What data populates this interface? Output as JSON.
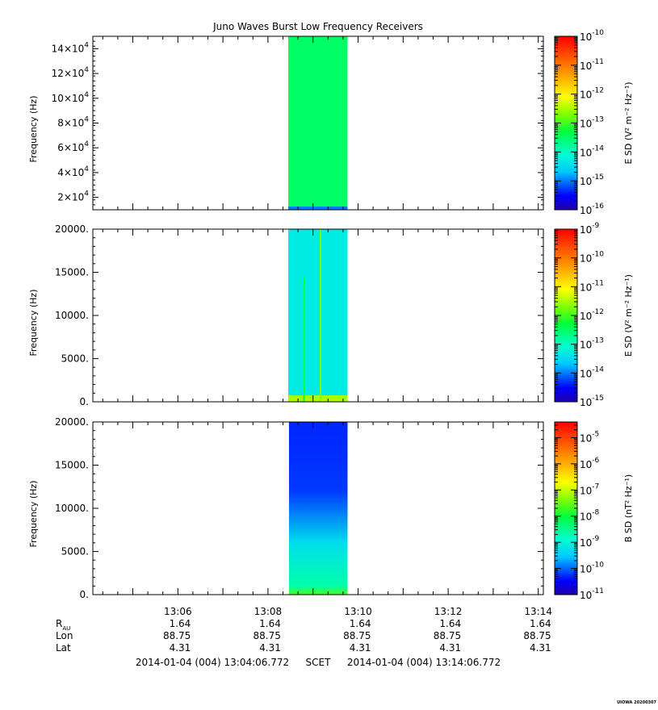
{
  "title": "Juno Waves Burst Low Frequency Receivers",
  "footer": {
    "start": "2014-01-04 (004) 13:04:06.772",
    "frame": "SCET",
    "end": "2014-01-04 (004) 13:14:06.772",
    "stamp": "UIOWA 20200307"
  },
  "ephemeris": {
    "rows": [
      {
        "label": "R",
        "sub": "AU",
        "values": [
          "1.64",
          "1.64",
          "1.64",
          "1.64",
          "1.64"
        ]
      },
      {
        "label": "Lon",
        "sub": "",
        "values": [
          "88.75",
          "88.75",
          "88.75",
          "88.75",
          "88.75"
        ]
      },
      {
        "label": "Lat",
        "sub": "",
        "values": [
          "4.31",
          "4.31",
          "4.31",
          "4.31",
          "4.31"
        ]
      }
    ]
  },
  "chart_data": [
    {
      "type": "heatmap",
      "panel": "top",
      "ylabel": "Frequency (Hz)",
      "colorbar_label": "E SD (V² m⁻² Hz⁻¹)",
      "colorbar_range_exp": [
        -16,
        -10
      ],
      "colorbar_ticks": [
        {
          "exp": "-10",
          "v": -10
        },
        {
          "exp": "-11",
          "v": -11
        },
        {
          "exp": "-12",
          "v": -12
        },
        {
          "exp": "-13",
          "v": -13
        },
        {
          "exp": "-14",
          "v": -14
        },
        {
          "exp": "-15",
          "v": -15
        },
        {
          "exp": "-16",
          "v": -16
        }
      ],
      "ylim": [
        10000,
        150000
      ],
      "yticks": [
        {
          "mant": "14×10",
          "exp": "4",
          "v": 140000
        },
        {
          "mant": "12×10",
          "exp": "4",
          "v": 120000
        },
        {
          "mant": "10×10",
          "exp": "4",
          "v": 100000
        },
        {
          "mant": "8×10",
          "exp": "4",
          "v": 80000
        },
        {
          "mant": "6×10",
          "exp": "4",
          "v": 60000
        },
        {
          "mant": "4×10",
          "exp": "4",
          "v": 40000
        },
        {
          "mant": "2×10",
          "exp": "4",
          "v": 20000
        }
      ],
      "data_window": [
        "13:08:27",
        "13:09:46"
      ],
      "dominant_level_exp": -13.5,
      "low_band_level_exp": -15
    },
    {
      "type": "heatmap",
      "panel": "middle",
      "ylabel": "Frequency (Hz)",
      "colorbar_label": "E SD (V² m⁻² Hz⁻¹)",
      "colorbar_range_exp": [
        -15,
        -9
      ],
      "colorbar_ticks": [
        {
          "exp": "-9",
          "v": -9
        },
        {
          "exp": "-10",
          "v": -10
        },
        {
          "exp": "-11",
          "v": -11
        },
        {
          "exp": "-12",
          "v": -12
        },
        {
          "exp": "-13",
          "v": -13
        },
        {
          "exp": "-14",
          "v": -14
        },
        {
          "exp": "-15",
          "v": -15
        }
      ],
      "ylim": [
        0,
        20000
      ],
      "yticks": [
        {
          "label": "20000.",
          "v": 20000
        },
        {
          "label": "15000.",
          "v": 15000
        },
        {
          "label": "10000.",
          "v": 10000
        },
        {
          "label": "5000.",
          "v": 5000
        },
        {
          "label": "0.",
          "v": 0
        }
      ],
      "data_window": [
        "13:08:27",
        "13:09:46"
      ],
      "dominant_level_exp": -13.3,
      "low_band_level_exp": -11.5
    },
    {
      "type": "heatmap",
      "panel": "bottom",
      "ylabel": "Frequency (Hz)",
      "colorbar_label": "B SD (nT² Hz⁻¹)",
      "colorbar_range_exp": [
        -11,
        -4.4
      ],
      "colorbar_ticks": [
        {
          "exp": "-5",
          "v": -5
        },
        {
          "exp": "-6",
          "v": -6
        },
        {
          "exp": "-7",
          "v": -7
        },
        {
          "exp": "-8",
          "v": -8
        },
        {
          "exp": "-9",
          "v": -9
        },
        {
          "exp": "-10",
          "v": -10
        },
        {
          "exp": "-11",
          "v": -11
        }
      ],
      "ylim": [
        0,
        20000
      ],
      "yticks": [
        {
          "label": "20000.",
          "v": 20000
        },
        {
          "label": "15000.",
          "v": 15000
        },
        {
          "label": "10000.",
          "v": 10000
        },
        {
          "label": "5000.",
          "v": 5000
        },
        {
          "label": "0.",
          "v": 0
        }
      ],
      "data_window": [
        "13:08:28",
        "13:09:46"
      ],
      "dominant_level_exp": -10.3,
      "low_band_level_exp": -8
    }
  ],
  "x_axis": {
    "range": [
      "13:04:06.772",
      "13:14:06.772"
    ],
    "ticks": [
      "13:06",
      "13:08",
      "13:10",
      "13:12",
      "13:14"
    ]
  }
}
